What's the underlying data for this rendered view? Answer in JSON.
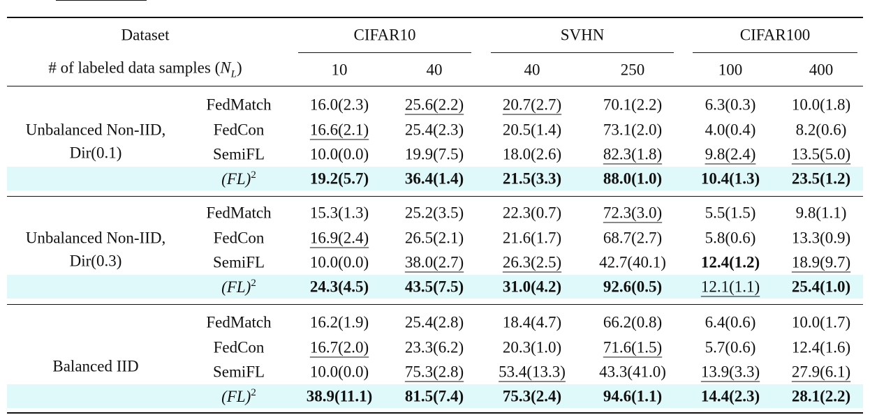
{
  "table": {
    "header": {
      "dataset": "Dataset",
      "datasets": [
        "CIFAR10",
        "SVHN",
        "CIFAR100"
      ],
      "samples_label": "# of labeled data samples",
      "samples_symbol": "N",
      "samples_subscript": "L",
      "samples": [
        "10",
        "40",
        "40",
        "250",
        "100",
        "400"
      ]
    },
    "groups": [
      {
        "label": [
          "Unbalanced Non-IID,",
          "Dir(0.1)"
        ],
        "rows": [
          {
            "method": "FedMatch",
            "cells": [
              {
                "text": "16.0(2.3)"
              },
              {
                "text": "25.6(2.2)",
                "underline": true
              },
              {
                "text": "20.7(2.7)",
                "underline": true
              },
              {
                "text": "70.1(2.2)"
              },
              {
                "text": "6.3(0.3)"
              },
              {
                "text": "10.0(1.8)"
              }
            ]
          },
          {
            "method": "FedCon",
            "cells": [
              {
                "text": "16.6(2.1)",
                "underline": true
              },
              {
                "text": "25.4(2.3)"
              },
              {
                "text": "20.5(1.4)"
              },
              {
                "text": "73.1(2.0)"
              },
              {
                "text": "4.0(0.4)"
              },
              {
                "text": "8.2(0.6)"
              }
            ]
          },
          {
            "method": "SemiFL",
            "cells": [
              {
                "text": "10.0(0.0)"
              },
              {
                "text": "19.9(7.5)"
              },
              {
                "text": "18.0(2.6)"
              },
              {
                "text": "82.3(1.8)",
                "underline": true
              },
              {
                "text": "9.8(2.4)",
                "underline": true
              },
              {
                "text": "13.5(5.0)",
                "underline": true
              }
            ]
          },
          {
            "method": "(FL)",
            "method_sup": "2",
            "highlight": true,
            "cells": [
              {
                "text": "19.2(5.7)",
                "bold": true
              },
              {
                "text": "36.4(1.4)",
                "bold": true
              },
              {
                "text": "21.5(3.3)",
                "bold": true
              },
              {
                "text": "88.0(1.0)",
                "bold": true
              },
              {
                "text": "10.4(1.3)",
                "bold": true
              },
              {
                "text": "23.5(1.2)",
                "bold": true
              }
            ]
          }
        ]
      },
      {
        "label": [
          "Unbalanced Non-IID,",
          "Dir(0.3)"
        ],
        "rows": [
          {
            "method": "FedMatch",
            "cells": [
              {
                "text": "15.3(1.3)"
              },
              {
                "text": "25.2(3.5)"
              },
              {
                "text": "22.3(0.7)"
              },
              {
                "text": "72.3(3.0)",
                "underline": true
              },
              {
                "text": "5.5(1.5)"
              },
              {
                "text": "9.8(1.1)"
              }
            ]
          },
          {
            "method": "FedCon",
            "cells": [
              {
                "text": "16.9(2.4)",
                "underline": true
              },
              {
                "text": "26.5(2.1)"
              },
              {
                "text": "21.6(1.7)"
              },
              {
                "text": "68.7(2.7)"
              },
              {
                "text": "5.8(0.6)"
              },
              {
                "text": "13.3(0.9)"
              }
            ]
          },
          {
            "method": "SemiFL",
            "cells": [
              {
                "text": "10.0(0.0)"
              },
              {
                "text": "38.0(2.7)",
                "underline": true
              },
              {
                "text": "26.3(2.5)",
                "underline": true
              },
              {
                "text": "42.7(40.1)"
              },
              {
                "text": "12.4(1.2)",
                "bold": true
              },
              {
                "text": "18.9(9.7)",
                "underline": true
              }
            ]
          },
          {
            "method": "(FL)",
            "method_sup": "2",
            "highlight": true,
            "cells": [
              {
                "text": "24.3(4.5)",
                "bold": true
              },
              {
                "text": "43.5(7.5)",
                "bold": true
              },
              {
                "text": "31.0(4.2)",
                "bold": true
              },
              {
                "text": "92.6(0.5)",
                "bold": true
              },
              {
                "text": "12.1(1.1)",
                "underline": true
              },
              {
                "text": "25.4(1.0)",
                "bold": true
              }
            ]
          }
        ]
      },
      {
        "label": [
          "Balanced IID"
        ],
        "rows": [
          {
            "method": "FedMatch",
            "cells": [
              {
                "text": "16.2(1.9)"
              },
              {
                "text": "25.4(2.8)"
              },
              {
                "text": "18.4(4.7)"
              },
              {
                "text": "66.2(0.8)"
              },
              {
                "text": "6.4(0.6)"
              },
              {
                "text": "10.0(1.7)"
              }
            ]
          },
          {
            "method": "FedCon",
            "cells": [
              {
                "text": "16.7(2.0)",
                "underline": true
              },
              {
                "text": "23.3(6.2)"
              },
              {
                "text": "20.3(1.0)"
              },
              {
                "text": "71.6(1.5)",
                "underline": true
              },
              {
                "text": "5.7(0.6)"
              },
              {
                "text": "12.4(1.6)"
              }
            ]
          },
          {
            "method": "SemiFL",
            "cells": [
              {
                "text": "10.0(0.0)"
              },
              {
                "text": "75.3(2.8)",
                "underline": true
              },
              {
                "text": "53.4(13.3)",
                "underline": true
              },
              {
                "text": "43.3(41.0)"
              },
              {
                "text": "13.9(3.3)",
                "underline": true
              },
              {
                "text": "27.9(6.1)",
                "underline": true
              }
            ]
          },
          {
            "method": "(FL)",
            "method_sup": "2",
            "highlight": true,
            "cells": [
              {
                "text": "38.9(11.1)",
                "bold": true
              },
              {
                "text": "81.5(7.4)",
                "bold": true
              },
              {
                "text": "75.3(2.4)",
                "bold": true
              },
              {
                "text": "94.6(1.1)",
                "bold": true
              },
              {
                "text": "14.4(2.3)",
                "bold": true
              },
              {
                "text": "28.1(2.2)",
                "bold": true
              }
            ]
          }
        ]
      }
    ]
  }
}
